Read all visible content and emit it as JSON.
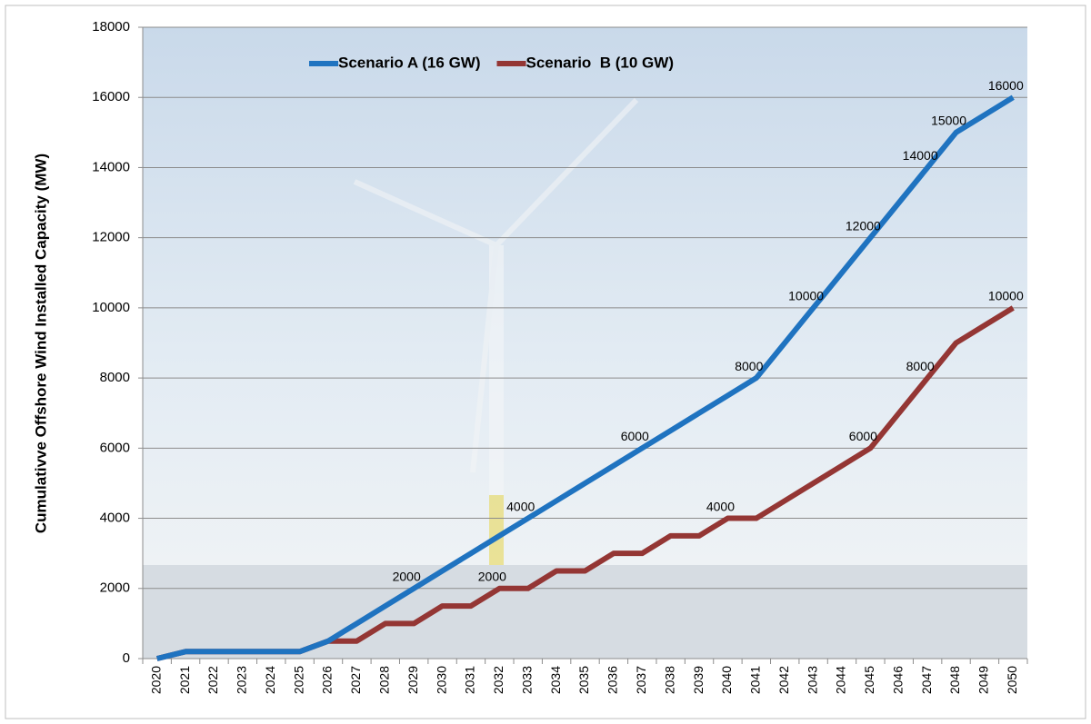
{
  "chart_data": {
    "type": "line",
    "y_axis_label": "Cumulativve Offshore Wind Installed Capacity (MW)",
    "categories": [
      "2020",
      "2021",
      "2022",
      "2023",
      "2024",
      "2025",
      "2026",
      "2027",
      "2028",
      "2029",
      "2030",
      "2031",
      "2032",
      "2033",
      "2034",
      "2035",
      "2036",
      "2037",
      "2038",
      "2039",
      "2040",
      "2041",
      "2042",
      "2043",
      "2044",
      "2045",
      "2046",
      "2047",
      "2048",
      "2049",
      "2050"
    ],
    "series": [
      {
        "name": "Scenario A (16 GW)",
        "color": "#1f73c0",
        "values": [
          0,
          200,
          200,
          200,
          200,
          200,
          500,
          1000,
          1500,
          2000,
          2500,
          3000,
          3500,
          4000,
          4500,
          5000,
          5500,
          6000,
          6500,
          7000,
          7500,
          8000,
          9000,
          10000,
          11000,
          12000,
          13000,
          14000,
          15000,
          15500,
          16000
        ]
      },
      {
        "name": "Scenario  B (10 GW)",
        "color": "#943634",
        "values": [
          0,
          200,
          200,
          200,
          200,
          200,
          500,
          500,
          1000,
          1000,
          1500,
          1500,
          2000,
          2000,
          2500,
          2500,
          3000,
          3000,
          3500,
          3500,
          4000,
          4000,
          4500,
          5000,
          5500,
          6000,
          7000,
          8000,
          9000,
          9500,
          10000
        ]
      }
    ],
    "annotations": [
      {
        "series": 0,
        "value": 2000
      },
      {
        "series": 0,
        "value": 4000
      },
      {
        "series": 0,
        "value": 6000
      },
      {
        "series": 0,
        "value": 8000
      },
      {
        "series": 0,
        "value": 10000
      },
      {
        "series": 0,
        "value": 12000
      },
      {
        "series": 0,
        "value": 14000
      },
      {
        "series": 0,
        "value": 15000
      },
      {
        "series": 0,
        "value": 16000
      },
      {
        "series": 1,
        "value": 2000
      },
      {
        "series": 1,
        "value": 4000
      },
      {
        "series": 1,
        "value": 6000
      },
      {
        "series": 1,
        "value": 8000
      },
      {
        "series": 1,
        "value": 10000
      }
    ],
    "ylim": [
      0,
      18000
    ],
    "yticks": [
      0,
      2000,
      4000,
      6000,
      8000,
      10000,
      12000,
      14000,
      16000,
      18000
    ],
    "grid": true,
    "legend": "top"
  }
}
